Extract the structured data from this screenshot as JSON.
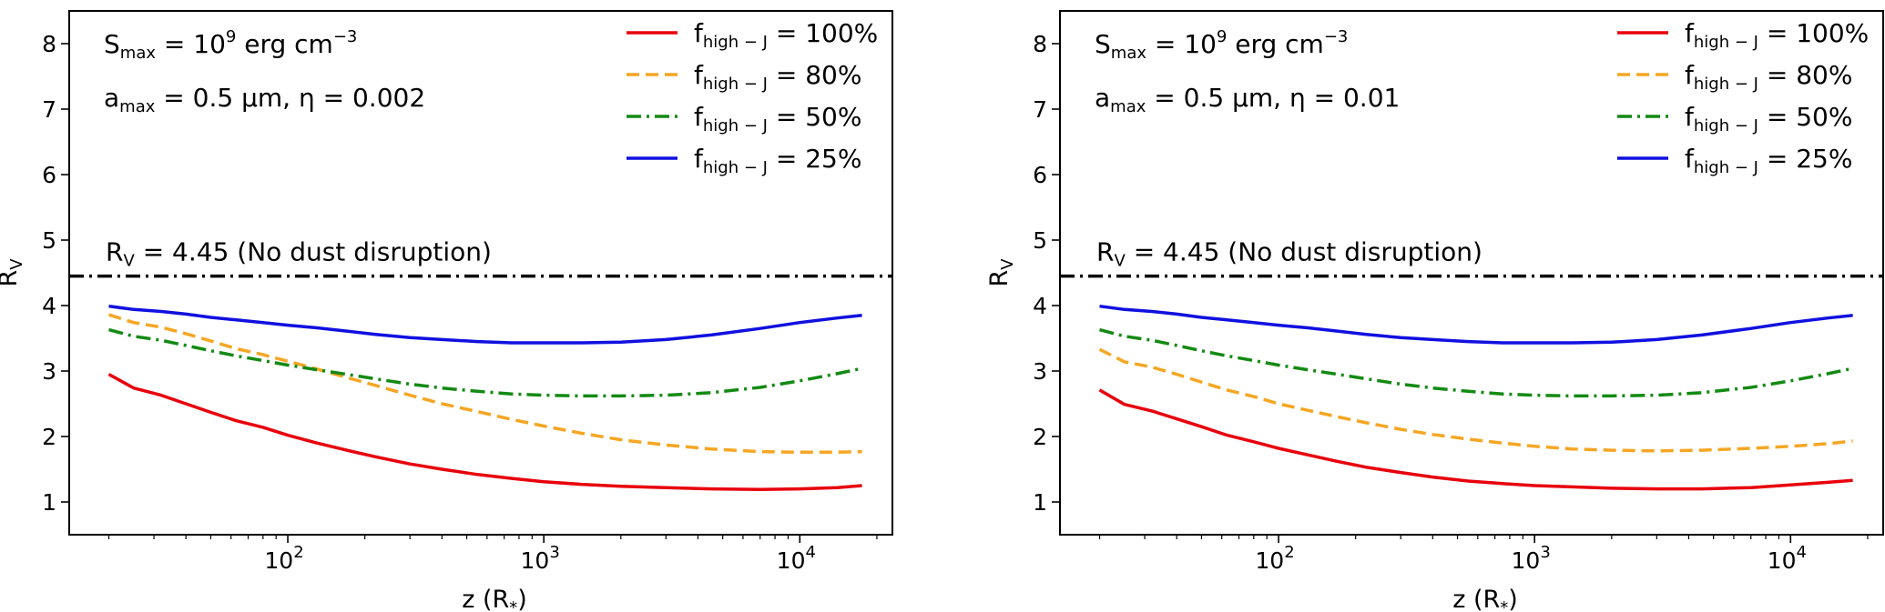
{
  "chart_data": [
    {
      "type": "line",
      "panel": "left",
      "xscale": "log",
      "xlim": [
        14,
        23000
      ],
      "ylim": [
        0.5,
        8.5
      ],
      "xlabel": {
        "main": "z (R",
        "sub": "*",
        "tail": ")"
      },
      "ylabel": {
        "main": "R",
        "sub": "V"
      },
      "yticks": [
        "1",
        "2",
        "3",
        "4",
        "5",
        "6",
        "7",
        "8"
      ],
      "xticks": [
        {
          "base": "10",
          "exp": "2",
          "value": 100
        },
        {
          "base": "10",
          "exp": "3",
          "value": 1000
        },
        {
          "base": "10",
          "exp": "4",
          "value": 10000
        }
      ],
      "annotations": {
        "smax": {
          "pre": "S",
          "sub": "max",
          "mid": " = 10",
          "sup1": "9",
          "tail": " erg cm",
          "sup2": "−3"
        },
        "params": {
          "pre": "a",
          "sub": "max",
          "text": " = 0.5 μm, η = 0.002"
        },
        "baseline": {
          "pre": "R",
          "sub": "V",
          "text": " = 4.45 (No dust disruption)",
          "value": 4.45
        }
      },
      "legend": {
        "position": "top-right"
      },
      "x": [
        20,
        25,
        32,
        40,
        50,
        63,
        80,
        100,
        130,
        170,
        220,
        300,
        400,
        550,
        750,
        1000,
        1400,
        2000,
        3000,
        4500,
        7000,
        10000,
        14000,
        17500
      ],
      "series": [
        {
          "label_pre": "f",
          "label_sub": "high − J",
          "label_value": " = 100%",
          "color": "#e8000b",
          "style": "solid",
          "values": [
            2.95,
            2.74,
            2.63,
            2.5,
            2.37,
            2.24,
            2.14,
            2.02,
            1.9,
            1.79,
            1.69,
            1.58,
            1.5,
            1.42,
            1.36,
            1.31,
            1.27,
            1.24,
            1.22,
            1.2,
            1.19,
            1.2,
            1.22,
            1.25
          ]
        },
        {
          "label_pre": "f",
          "label_sub": "high − J",
          "label_value": " = 80%",
          "color": "#f5a623",
          "style": "dashed",
          "values": [
            3.86,
            3.74,
            3.67,
            3.57,
            3.46,
            3.34,
            3.25,
            3.15,
            3.03,
            2.9,
            2.78,
            2.63,
            2.5,
            2.38,
            2.26,
            2.16,
            2.05,
            1.95,
            1.87,
            1.81,
            1.77,
            1.76,
            1.76,
            1.77
          ]
        },
        {
          "label_pre": "f",
          "label_sub": "high − J",
          "label_value": " = 50%",
          "color": "#138a13",
          "style": "dashdot",
          "values": [
            3.63,
            3.53,
            3.47,
            3.39,
            3.31,
            3.23,
            3.16,
            3.09,
            3.02,
            2.95,
            2.88,
            2.8,
            2.74,
            2.69,
            2.65,
            2.63,
            2.62,
            2.62,
            2.63,
            2.67,
            2.75,
            2.85,
            2.96,
            3.04
          ]
        },
        {
          "label_pre": "f",
          "label_sub": "high − J",
          "label_value": " = 25%",
          "color": "#1010e0",
          "style": "solid",
          "values": [
            3.99,
            3.94,
            3.91,
            3.87,
            3.82,
            3.78,
            3.74,
            3.7,
            3.66,
            3.61,
            3.56,
            3.51,
            3.48,
            3.45,
            3.43,
            3.43,
            3.43,
            3.44,
            3.48,
            3.55,
            3.65,
            3.74,
            3.81,
            3.85
          ]
        }
      ]
    },
    {
      "type": "line",
      "panel": "right",
      "xscale": "log",
      "xlim": [
        14,
        23000
      ],
      "ylim": [
        0.5,
        8.5
      ],
      "xlabel": {
        "main": "z (R",
        "sub": "*",
        "tail": ")"
      },
      "ylabel": {
        "main": "R",
        "sub": "V"
      },
      "yticks": [
        "1",
        "2",
        "3",
        "4",
        "5",
        "6",
        "7",
        "8"
      ],
      "xticks": [
        {
          "base": "10",
          "exp": "2",
          "value": 100
        },
        {
          "base": "10",
          "exp": "3",
          "value": 1000
        },
        {
          "base": "10",
          "exp": "4",
          "value": 10000
        }
      ],
      "annotations": {
        "smax": {
          "pre": "S",
          "sub": "max",
          "mid": " = 10",
          "sup1": "9",
          "tail": " erg cm",
          "sup2": "−3"
        },
        "params": {
          "pre": "a",
          "sub": "max",
          "text": " = 0.5 μm, η = 0.01"
        },
        "baseline": {
          "pre": "R",
          "sub": "V",
          "text": " = 4.45 (No dust disruption)",
          "value": 4.45
        }
      },
      "legend": {
        "position": "top-right"
      },
      "x": [
        20,
        25,
        32,
        40,
        50,
        63,
        80,
        100,
        130,
        170,
        220,
        300,
        400,
        550,
        750,
        1000,
        1400,
        2000,
        3000,
        4500,
        7000,
        10000,
        14000,
        17500
      ],
      "series": [
        {
          "label_pre": "f",
          "label_sub": "high − J",
          "label_value": " = 100%",
          "color": "#e8000b",
          "style": "solid",
          "values": [
            2.71,
            2.49,
            2.39,
            2.27,
            2.15,
            2.02,
            1.92,
            1.82,
            1.72,
            1.62,
            1.53,
            1.45,
            1.38,
            1.32,
            1.28,
            1.25,
            1.23,
            1.21,
            1.2,
            1.2,
            1.22,
            1.26,
            1.3,
            1.33
          ]
        },
        {
          "label_pre": "f",
          "label_sub": "high − J",
          "label_value": " = 80%",
          "color": "#f5a623",
          "style": "dashed",
          "values": [
            3.33,
            3.14,
            3.06,
            2.95,
            2.83,
            2.71,
            2.61,
            2.5,
            2.4,
            2.3,
            2.21,
            2.11,
            2.03,
            1.96,
            1.9,
            1.85,
            1.81,
            1.79,
            1.78,
            1.79,
            1.82,
            1.85,
            1.89,
            1.93
          ]
        },
        {
          "label_pre": "f",
          "label_sub": "high − J",
          "label_value": " = 50%",
          "color": "#138a13",
          "style": "dashdot",
          "values": [
            3.63,
            3.53,
            3.47,
            3.39,
            3.31,
            3.23,
            3.16,
            3.09,
            3.02,
            2.95,
            2.88,
            2.8,
            2.74,
            2.69,
            2.65,
            2.63,
            2.62,
            2.62,
            2.63,
            2.67,
            2.75,
            2.85,
            2.96,
            3.04
          ]
        },
        {
          "label_pre": "f",
          "label_sub": "high − J",
          "label_value": " = 25%",
          "color": "#1010e0",
          "style": "solid",
          "values": [
            3.99,
            3.94,
            3.91,
            3.87,
            3.82,
            3.78,
            3.74,
            3.7,
            3.66,
            3.61,
            3.56,
            3.51,
            3.48,
            3.45,
            3.43,
            3.43,
            3.43,
            3.44,
            3.48,
            3.55,
            3.65,
            3.74,
            3.81,
            3.85
          ]
        }
      ]
    }
  ]
}
